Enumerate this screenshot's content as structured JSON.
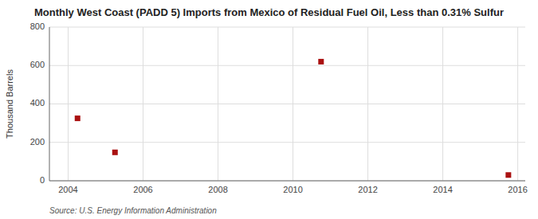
{
  "chart_data": {
    "type": "scatter",
    "title": "Monthly West Coast (PADD 5) Imports from Mexico of Residual Fuel Oil, Less than 0.31% Sulfur",
    "ylabel": "Thousand Barrels",
    "source": "Source: U.S. Energy Information Administration",
    "x": [
      2004.25,
      2005.25,
      2010.75,
      2015.75
    ],
    "values": [
      325,
      148,
      620,
      30
    ],
    "color": "#aa1111",
    "marker": "square",
    "xlim": [
      2003.5,
      2016.2
    ],
    "ylim": [
      0,
      800
    ],
    "xticks": [
      2004,
      2006,
      2008,
      2010,
      2012,
      2014,
      2016
    ],
    "yticks": [
      0,
      200,
      400,
      600,
      800
    ],
    "grid": true
  }
}
